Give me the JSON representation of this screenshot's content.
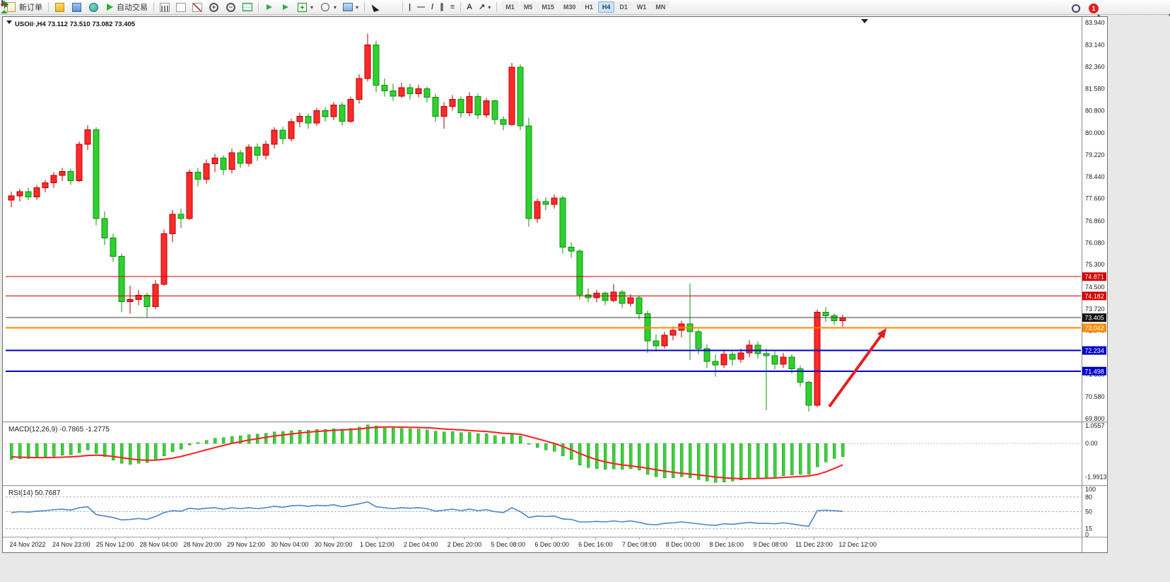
{
  "toolbar": {
    "new_order_label": "新订单",
    "auto_trading_label": "自动交易",
    "timeframes": [
      "M1",
      "M5",
      "M15",
      "M30",
      "H1",
      "H4",
      "D1",
      "W1",
      "MN"
    ],
    "active_timeframe": "H4",
    "notification_count": "1",
    "glyphs": {
      "plus": "+",
      "minus": "−",
      "caret": "▾",
      "a": "A",
      "vline": "|",
      "hline": "—",
      "tline": "/",
      "channel": "∥",
      "fibo": "≡",
      "arrow": "↗"
    }
  },
  "window": {
    "title_symbol": "USOil·,H4",
    "title_ohlc": "73.112 73.510 73.082 73.405"
  },
  "chart_data": {
    "type": "candlestick",
    "symbol": "USOil",
    "period": "H4",
    "current_price": "73.405",
    "ohlc_display": "73.112 73.510 73.082 73.405",
    "ylim": [
      69.8,
      83.94
    ],
    "y_ticks": [
      "83.940",
      "83.140",
      "82.360",
      "81.580",
      "80.800",
      "80.000",
      "79.220",
      "78.440",
      "77.660",
      "76.860",
      "76.080",
      "75.300",
      "74.500",
      "73.720",
      "72.940",
      "72.160",
      "71.380",
      "70.580",
      "69.800"
    ],
    "x_ticks": [
      "24 Nov 2022",
      "24 Nov 23:00",
      "25 Nov 12:00",
      "28 Nov 04:00",
      "28 Nov 20:00",
      "29 Nov 12:00",
      "30 Nov 04:00",
      "30 Nov 20:00",
      "1 Dec 12:00",
      "2 Dec 04:00",
      "2 Dec 20:00",
      "5 Dec 08:00",
      "6 Dec 00:00",
      "6 Dec 16:00",
      "7 Dec 08:00",
      "8 Dec 00:00",
      "8 Dec 16:00",
      "9 Dec 08:00",
      "11 Dec 23:00",
      "12 Dec 12:00"
    ],
    "colors": {
      "bull": "#ff2a2a",
      "bull_stroke": "#b30000",
      "bear": "#2ed12e",
      "bear_stroke": "#0f8f0f",
      "macd_hist": "#3ecf3e",
      "macd_signal": "#ff1f1f",
      "rsi_line": "#4a86c8",
      "arrow": "#e22020"
    },
    "price_lines": [
      {
        "label": "74.871",
        "value": 74.871,
        "color": "#d40000",
        "width": 1,
        "badge": "#d40000"
      },
      {
        "label": "74.182",
        "value": 74.182,
        "color": "#d40000",
        "width": 1,
        "badge": "#d40000"
      },
      {
        "label": "73.405",
        "value": 73.405,
        "color": "#3a3a3a",
        "width": 1,
        "badge": "#111111"
      },
      {
        "label": "73.042",
        "value": 73.042,
        "color": "#ff8a00",
        "width": 2,
        "badge": "#ff8a00"
      },
      {
        "label": "72.234",
        "value": 72.234,
        "color": "#0000cc",
        "width": 2,
        "badge": "#0000cc"
      },
      {
        "label": "71.498",
        "value": 71.498,
        "color": "#0000cc",
        "width": 2,
        "badge": "#0000cc"
      }
    ],
    "arrow_annotation": {
      "from": [
        1169,
        551
      ],
      "to": [
        1250,
        440
      ]
    },
    "candles": [
      [
        77.6,
        77.9,
        77.35,
        77.75
      ],
      [
        77.75,
        78.0,
        77.55,
        77.9
      ],
      [
        77.9,
        78.05,
        77.6,
        77.72
      ],
      [
        77.72,
        78.15,
        77.62,
        78.05
      ],
      [
        78.05,
        78.32,
        77.88,
        78.22
      ],
      [
        78.22,
        78.6,
        78.05,
        78.48
      ],
      [
        78.48,
        78.75,
        78.28,
        78.62
      ],
      [
        78.62,
        78.72,
        78.15,
        78.3
      ],
      [
        78.3,
        79.7,
        78.25,
        79.6
      ],
      [
        79.6,
        80.28,
        79.4,
        80.12
      ],
      [
        80.12,
        80.2,
        76.7,
        76.95
      ],
      [
        76.95,
        77.2,
        76.0,
        76.25
      ],
      [
        76.25,
        76.4,
        75.4,
        75.6
      ],
      [
        75.6,
        75.7,
        73.6,
        73.98
      ],
      [
        73.98,
        74.55,
        73.55,
        74.05
      ],
      [
        74.05,
        74.4,
        73.85,
        74.2
      ],
      [
        74.2,
        74.3,
        73.42,
        73.8
      ],
      [
        73.8,
        74.75,
        73.7,
        74.6
      ],
      [
        74.6,
        76.55,
        74.55,
        76.4
      ],
      [
        76.4,
        77.25,
        76.1,
        77.1
      ],
      [
        77.1,
        77.3,
        76.6,
        76.95
      ],
      [
        76.95,
        78.7,
        76.9,
        78.6
      ],
      [
        78.6,
        78.75,
        78.1,
        78.35
      ],
      [
        78.35,
        79.05,
        78.2,
        78.9
      ],
      [
        78.9,
        79.25,
        78.6,
        79.1
      ],
      [
        79.1,
        79.2,
        78.5,
        78.7
      ],
      [
        78.7,
        79.45,
        78.55,
        79.3
      ],
      [
        79.3,
        79.4,
        78.75,
        78.92
      ],
      [
        78.92,
        79.6,
        78.8,
        79.5
      ],
      [
        79.5,
        79.62,
        79.0,
        79.2
      ],
      [
        79.2,
        79.72,
        79.05,
        79.6
      ],
      [
        79.6,
        80.2,
        79.45,
        80.1
      ],
      [
        80.1,
        80.22,
        79.6,
        79.8
      ],
      [
        79.8,
        80.5,
        79.7,
        80.4
      ],
      [
        80.4,
        80.72,
        80.2,
        80.6
      ],
      [
        80.6,
        80.7,
        80.15,
        80.35
      ],
      [
        80.35,
        80.9,
        80.25,
        80.8
      ],
      [
        80.8,
        80.92,
        80.4,
        80.58
      ],
      [
        80.58,
        81.1,
        80.45,
        81.0
      ],
      [
        81.0,
        81.1,
        80.25,
        80.42
      ],
      [
        80.42,
        81.3,
        80.35,
        81.2
      ],
      [
        81.2,
        82.1,
        81.05,
        81.95
      ],
      [
        81.95,
        83.55,
        81.85,
        83.15
      ],
      [
        83.15,
        83.3,
        81.45,
        81.7
      ],
      [
        81.7,
        81.95,
        81.3,
        81.5
      ],
      [
        81.5,
        81.75,
        81.15,
        81.32
      ],
      [
        81.32,
        81.8,
        81.25,
        81.62
      ],
      [
        81.62,
        81.75,
        81.2,
        81.4
      ],
      [
        81.4,
        81.72,
        81.28,
        81.58
      ],
      [
        81.58,
        81.65,
        81.1,
        81.28
      ],
      [
        81.28,
        81.4,
        80.4,
        80.6
      ],
      [
        80.6,
        81.1,
        80.15,
        80.95
      ],
      [
        80.95,
        81.35,
        80.8,
        81.2
      ],
      [
        81.2,
        81.3,
        80.55,
        80.72
      ],
      [
        80.72,
        81.45,
        80.6,
        81.3
      ],
      [
        81.3,
        81.4,
        80.5,
        80.65
      ],
      [
        80.65,
        81.25,
        80.55,
        81.15
      ],
      [
        81.15,
        81.2,
        80.3,
        80.48
      ],
      [
        80.48,
        80.6,
        80.1,
        80.3
      ],
      [
        80.3,
        82.5,
        80.25,
        82.35
      ],
      [
        82.35,
        82.45,
        80.1,
        80.25
      ],
      [
        80.25,
        80.55,
        76.65,
        76.95
      ],
      [
        76.95,
        77.65,
        76.8,
        77.55
      ],
      [
        77.55,
        77.7,
        77.25,
        77.45
      ],
      [
        77.45,
        77.8,
        77.3,
        77.68
      ],
      [
        77.68,
        77.75,
        75.7,
        75.92
      ],
      [
        75.92,
        76.1,
        75.55,
        75.78
      ],
      [
        75.78,
        75.85,
        74.05,
        74.22
      ],
      [
        74.22,
        74.45,
        73.95,
        74.12
      ],
      [
        74.12,
        74.4,
        73.95,
        74.28
      ],
      [
        74.28,
        74.35,
        73.85,
        74.02
      ],
      [
        74.02,
        74.6,
        73.95,
        74.32
      ],
      [
        74.32,
        74.4,
        73.75,
        73.92
      ],
      [
        73.92,
        74.25,
        73.8,
        74.12
      ],
      [
        74.12,
        74.18,
        73.35,
        73.55
      ],
      [
        73.55,
        73.65,
        72.15,
        72.58
      ],
      [
        72.58,
        72.8,
        72.2,
        72.4
      ],
      [
        72.4,
        72.9,
        72.3,
        72.78
      ],
      [
        72.78,
        73.1,
        72.6,
        72.95
      ],
      [
        72.95,
        73.3,
        72.7,
        73.18
      ],
      [
        73.18,
        74.62,
        71.9,
        72.9
      ],
      [
        72.9,
        73.0,
        72.1,
        72.3
      ],
      [
        72.3,
        72.45,
        71.6,
        71.85
      ],
      [
        71.85,
        72.1,
        71.3,
        71.72
      ],
      [
        71.72,
        72.25,
        71.6,
        72.1
      ],
      [
        72.1,
        72.2,
        71.7,
        71.92
      ],
      [
        71.92,
        72.3,
        71.8,
        72.15
      ],
      [
        72.15,
        72.6,
        72.0,
        72.42
      ],
      [
        72.42,
        72.55,
        71.95,
        72.12
      ],
      [
        72.12,
        72.3,
        70.1,
        72.05
      ],
      [
        72.05,
        72.2,
        71.55,
        71.75
      ],
      [
        71.75,
        72.15,
        71.6,
        72.0
      ],
      [
        72.0,
        72.1,
        71.4,
        71.58
      ],
      [
        71.58,
        71.7,
        70.95,
        71.1
      ],
      [
        71.1,
        71.15,
        70.05,
        70.28
      ],
      [
        70.28,
        73.7,
        70.2,
        73.6
      ],
      [
        73.6,
        73.78,
        73.25,
        73.48
      ],
      [
        73.48,
        73.55,
        73.15,
        73.3
      ],
      [
        73.3,
        73.51,
        73.08,
        73.41
      ]
    ],
    "macd": {
      "label": "MACD(12,26,9)",
      "value_main": "-0.7865",
      "value_signal": "-1.2775",
      "ticks": [
        "1.0557",
        "0.00",
        "-1.9913"
      ],
      "ylim": [
        -2.36,
        1.18
      ],
      "histogram": [
        -0.95,
        -0.92,
        -0.9,
        -0.86,
        -0.82,
        -0.76,
        -0.7,
        -0.68,
        -0.55,
        -0.4,
        -0.6,
        -0.8,
        -1.0,
        -1.2,
        -1.25,
        -1.2,
        -1.15,
        -1.0,
        -0.75,
        -0.5,
        -0.35,
        -0.1,
        0.05,
        0.18,
        0.3,
        0.35,
        0.42,
        0.46,
        0.52,
        0.55,
        0.6,
        0.68,
        0.7,
        0.75,
        0.8,
        0.8,
        0.84,
        0.84,
        0.88,
        0.85,
        0.9,
        0.98,
        1.1,
        1.05,
        0.98,
        0.92,
        0.9,
        0.88,
        0.86,
        0.82,
        0.72,
        0.68,
        0.7,
        0.64,
        0.66,
        0.58,
        0.58,
        0.48,
        0.38,
        0.55,
        0.45,
        -0.05,
        -0.25,
        -0.4,
        -0.48,
        -0.75,
        -0.95,
        -1.3,
        -1.45,
        -1.5,
        -1.55,
        -1.52,
        -1.55,
        -1.5,
        -1.6,
        -1.85,
        -2.0,
        -2.05,
        -2.05,
        -2.0,
        -2.05,
        -2.15,
        -2.25,
        -2.32,
        -2.3,
        -2.25,
        -2.18,
        -2.1,
        -2.05,
        -2.05,
        -2.0,
        -1.92,
        -1.88,
        -1.85,
        -1.85,
        -1.4,
        -1.1,
        -0.9,
        -0.7865
      ],
      "signal": [
        -0.8,
        -0.82,
        -0.84,
        -0.85,
        -0.85,
        -0.84,
        -0.82,
        -0.8,
        -0.77,
        -0.72,
        -0.7,
        -0.72,
        -0.78,
        -0.85,
        -0.92,
        -0.98,
        -1.0,
        -1.0,
        -0.95,
        -0.88,
        -0.78,
        -0.65,
        -0.52,
        -0.38,
        -0.25,
        -0.12,
        0.0,
        0.1,
        0.2,
        0.28,
        0.36,
        0.44,
        0.5,
        0.56,
        0.62,
        0.67,
        0.71,
        0.75,
        0.78,
        0.8,
        0.83,
        0.86,
        0.92,
        0.96,
        0.98,
        0.98,
        0.97,
        0.96,
        0.95,
        0.93,
        0.9,
        0.86,
        0.83,
        0.8,
        0.77,
        0.74,
        0.71,
        0.66,
        0.6,
        0.58,
        0.55,
        0.42,
        0.28,
        0.14,
        0.0,
        -0.18,
        -0.38,
        -0.6,
        -0.8,
        -0.97,
        -1.1,
        -1.2,
        -1.28,
        -1.34,
        -1.4,
        -1.48,
        -1.57,
        -1.65,
        -1.72,
        -1.78,
        -1.83,
        -1.88,
        -1.94,
        -2.0,
        -2.05,
        -2.08,
        -2.1,
        -2.1,
        -2.09,
        -2.08,
        -2.06,
        -2.03,
        -2.0,
        -1.97,
        -1.94,
        -1.85,
        -1.7,
        -1.5,
        -1.2775
      ]
    },
    "rsi": {
      "label": "RSI(14)",
      "value": "50.7687",
      "ticks": [
        "100",
        "80",
        "50",
        "15",
        "0"
      ],
      "levels": [
        80,
        50,
        15
      ],
      "ylim": [
        0,
        100
      ],
      "values": [
        48,
        50,
        49,
        51,
        52,
        54,
        55,
        53,
        58,
        60,
        44,
        41,
        38,
        33,
        34,
        36,
        34,
        40,
        48,
        52,
        51,
        57,
        55,
        57,
        58,
        55,
        58,
        56,
        58,
        56,
        58,
        61,
        59,
        62,
        63,
        61,
        63,
        62,
        64,
        60,
        63,
        66,
        70,
        60,
        58,
        56,
        58,
        57,
        58,
        56,
        51,
        53,
        55,
        52,
        55,
        52,
        54,
        50,
        48,
        58,
        50,
        38,
        41,
        40,
        41,
        35,
        34,
        29,
        29,
        30,
        29,
        31,
        29,
        31,
        28,
        24,
        23,
        26,
        27,
        29,
        27,
        25,
        23,
        22,
        25,
        24,
        26,
        28,
        26,
        26,
        25,
        27,
        25,
        22,
        20,
        52,
        53,
        52,
        50.7687
      ]
    }
  }
}
